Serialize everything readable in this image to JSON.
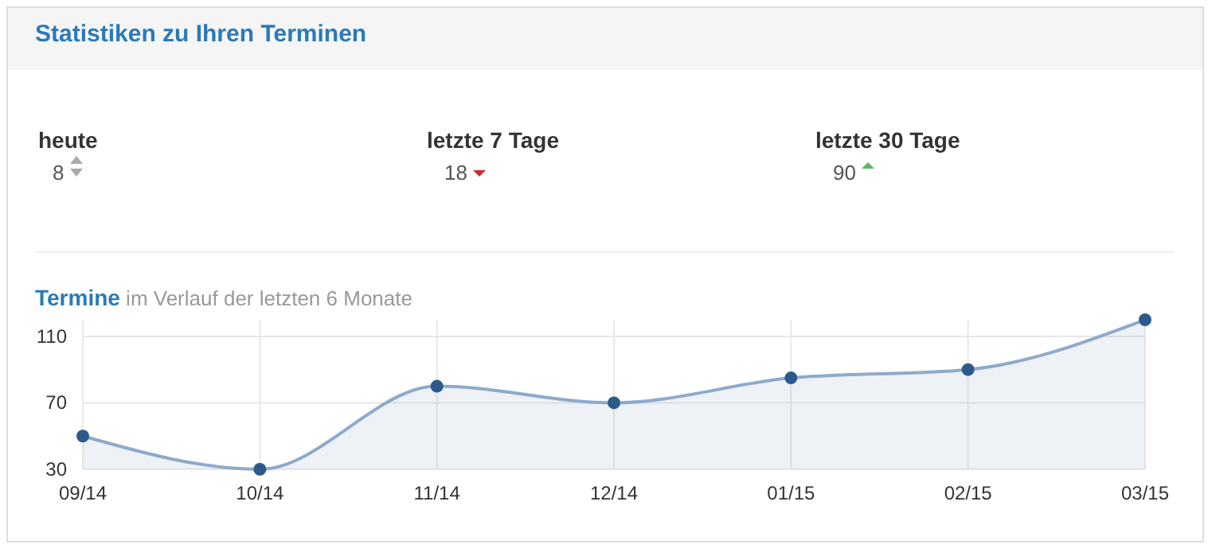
{
  "chart_data": {
    "type": "area",
    "title": "Termine",
    "subtitle": "im Verlauf der letzten 6 Monate",
    "annotations": [
      "Statistiken zu Ihren Terminen",
      "heute",
      "8",
      "letzte 7 Tage",
      "18",
      "letzte 30 Tage",
      "90"
    ],
    "categories": [
      "09/14",
      "10/14",
      "11/14",
      "12/14",
      "01/15",
      "02/15",
      "03/15"
    ],
    "series": [
      {
        "color": "#8eaacb",
        "values": [
          50,
          30,
          80,
          70,
          85,
          90,
          120
        ]
      }
    ],
    "ylim": [
      30,
      120
    ],
    "yticks": [
      30,
      70,
      110
    ],
    "grid": true,
    "marker": "circle"
  }
}
